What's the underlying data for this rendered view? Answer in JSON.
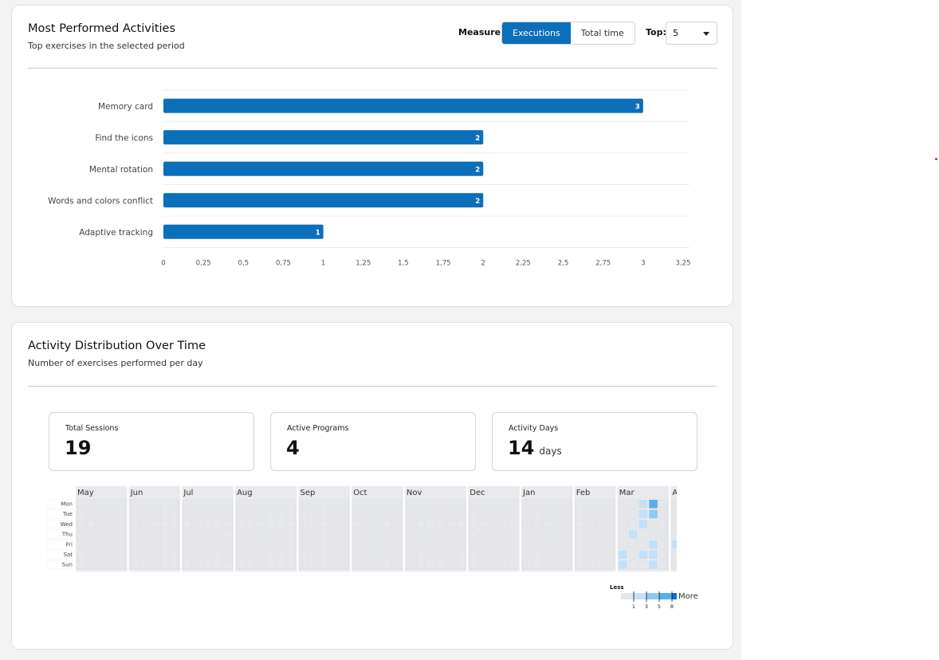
{
  "top_card": {
    "title": "Most Performed Activities",
    "subtitle": "Top exercises in the selected period",
    "measure_label": "Measure:",
    "measure_options": [
      "Executions",
      "Total time"
    ],
    "measure_selected": "Executions",
    "top_label": "Top:",
    "top_value": "5"
  },
  "chart_data": {
    "type": "bar",
    "orientation": "horizontal",
    "categories": [
      "Memory card",
      "Find the icons",
      "Mental rotation",
      "Words and colors conflict",
      "Adaptive tracking"
    ],
    "values": [
      3,
      2,
      2,
      2,
      1
    ],
    "data_labels": [
      "3",
      "2",
      "2",
      "2",
      "1"
    ],
    "xlim": [
      0,
      3.25
    ],
    "xticks": [
      "0",
      "0,25",
      "0,5",
      "0,75",
      "1",
      "1,25",
      "1,5",
      "1,75",
      "2",
      "2,25",
      "2,5",
      "2,75",
      "3",
      "3,25"
    ],
    "grid": true,
    "color": "#0b6fba"
  },
  "bottom_card": {
    "title": "Activity Distribution Over Time",
    "subtitle": "Number of exercises performed per day"
  },
  "stats": [
    {
      "label": "Total Sessions",
      "value": "19",
      "unit": ""
    },
    {
      "label": "Active Programs",
      "value": "4",
      "unit": ""
    },
    {
      "label": "Activity Days",
      "value": "14",
      "unit": "days"
    }
  ],
  "heatmap": {
    "months": [
      "May",
      "Jun",
      "Jul",
      "Aug",
      "Sep",
      "Oct",
      "Nov",
      "Dec",
      "Jan",
      "Feb",
      "Mar",
      "Apr"
    ],
    "weekdays": [
      "Mon",
      "Tue",
      "Wed",
      "Thu",
      "Fri",
      "Sat",
      "Sun"
    ],
    "weeks_per_month": [
      5,
      5,
      5,
      6,
      5,
      5,
      6,
      5,
      5,
      4,
      5,
      5
    ],
    "active_cells": [
      {
        "month": "Mar",
        "week": 2,
        "day": 0,
        "level": 1
      },
      {
        "month": "Mar",
        "week": 3,
        "day": 0,
        "level": 3
      },
      {
        "month": "Mar",
        "week": 2,
        "day": 1,
        "level": 1
      },
      {
        "month": "Mar",
        "week": 3,
        "day": 1,
        "level": 2
      },
      {
        "month": "Mar",
        "week": 3,
        "day": 1,
        "level": 1
      },
      {
        "month": "Mar",
        "week": 2,
        "day": 2,
        "level": 1
      },
      {
        "month": "Mar",
        "week": 1,
        "day": 3,
        "level": 1
      },
      {
        "month": "Mar",
        "week": 3,
        "day": 4,
        "level": 1
      },
      {
        "month": "Mar",
        "week": 0,
        "day": 5,
        "level": 1
      },
      {
        "month": "Mar",
        "week": 2,
        "day": 5,
        "level": 1
      },
      {
        "month": "Mar",
        "week": 3,
        "day": 5,
        "level": 1
      },
      {
        "month": "Mar",
        "week": 0,
        "day": 6,
        "level": 1
      },
      {
        "month": "Mar",
        "week": 3,
        "day": 6,
        "level": 1
      },
      {
        "month": "Apr",
        "week": 0,
        "day": 4,
        "level": 1
      }
    ],
    "legend": {
      "less": "Less",
      "more": "More",
      "ticks": [
        "1",
        "3",
        "5",
        "8"
      ],
      "colors": [
        "#e3e8ee",
        "#c2e0f8",
        "#8ec9f2",
        "#5aaeea",
        "#0b6fd1"
      ]
    }
  }
}
